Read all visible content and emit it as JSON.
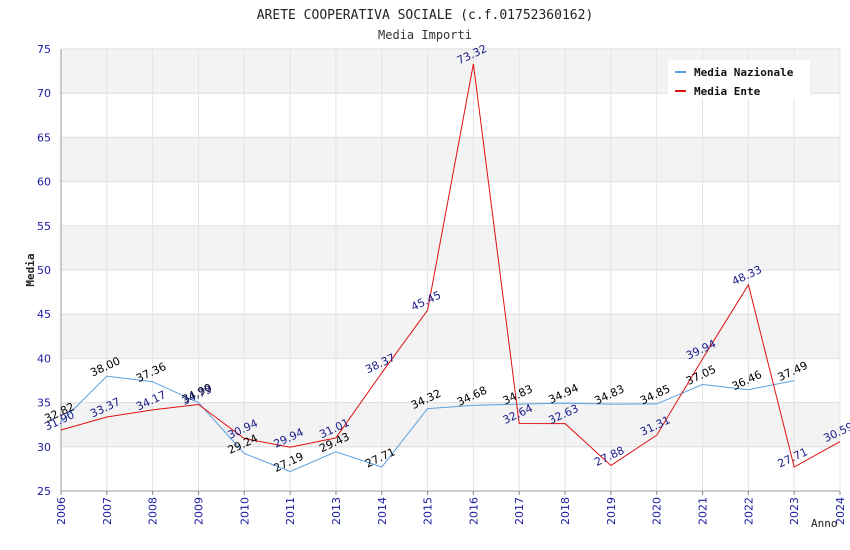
{
  "chart_data": {
    "type": "line",
    "title": "ARETE COOPERATIVA SOCIALE (c.f.01752360162)",
    "subtitle": "Media Importi",
    "xlabel": "Anno",
    "ylabel": "Media",
    "ylim": [
      25,
      75
    ],
    "yticks": [
      "25",
      "30",
      "35",
      "40",
      "45",
      "50",
      "55",
      "60",
      "65",
      "70",
      "75"
    ],
    "categories": [
      "2006",
      "2007",
      "2008",
      "2009",
      "2010",
      "2011",
      "2013",
      "2014",
      "2015",
      "2016",
      "2017",
      "2018",
      "2019",
      "2020",
      "2021",
      "2022",
      "2023",
      "2024"
    ],
    "grid": true,
    "legend_position": "top-right",
    "series": [
      {
        "name": "Media Nazionale",
        "color": "#5aa0e0",
        "label_color": "#000000",
        "values": [
          32.82,
          38.0,
          37.36,
          34.99,
          29.24,
          27.19,
          29.43,
          27.71,
          34.32,
          34.68,
          34.83,
          34.94,
          34.83,
          34.85,
          37.05,
          36.46,
          37.49,
          null
        ],
        "labels": [
          "32.82",
          "38.00",
          "37.36",
          "34.99",
          "29.24",
          "27.19",
          "29.43",
          "27.71",
          "34.32",
          "34.68",
          "34.83",
          "34.94",
          "34.83",
          "34.85",
          "37.05",
          "36.46",
          "37.49",
          null
        ]
      },
      {
        "name": "Media Ente",
        "color": "#e01010",
        "label_color": "#1a1a8c",
        "values": [
          31.9,
          33.37,
          34.17,
          34.79,
          30.94,
          29.94,
          31.01,
          38.37,
          45.45,
          73.32,
          32.64,
          32.63,
          27.88,
          31.31,
          39.94,
          48.33,
          27.71,
          30.59
        ],
        "labels": [
          "31.90",
          "33.37",
          "34.17",
          "34.79",
          "30.94",
          "29.94",
          "31.01",
          "38.37",
          "45.45",
          "73.32",
          "32.64",
          "32.63",
          "27.88",
          "31.31",
          "39.94",
          "48.33",
          "27.71",
          "30.59"
        ]
      }
    ]
  }
}
